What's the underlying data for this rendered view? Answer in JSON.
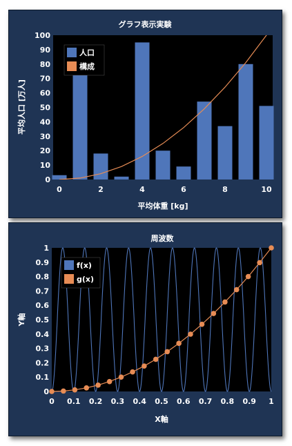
{
  "colors": {
    "bar": "#4f76ba",
    "line": "#e78c55",
    "wave": "#4f76ba",
    "panel": "#1f3454",
    "plot": "#000000"
  },
  "chart_data": [
    {
      "type": "bar",
      "title": "グラフ表示実験",
      "xlabel": "平均体重 [kg]",
      "ylabel": "平均人口 [万人]",
      "xlim": [
        -0.3,
        10.3
      ],
      "ylim": [
        0,
        100
      ],
      "xticks": [
        0,
        2,
        4,
        6,
        8,
        10
      ],
      "yticks": [
        0,
        10,
        20,
        30,
        40,
        50,
        60,
        70,
        80,
        90,
        100
      ],
      "legend": {
        "position": "top-left",
        "entries": [
          "人口",
          "構成"
        ]
      },
      "series": [
        {
          "name": "人口",
          "type": "bar",
          "x": [
            0,
            1,
            2,
            3,
            4,
            5,
            6,
            7,
            8,
            9,
            10
          ],
          "values": [
            3,
            73,
            18,
            2,
            95,
            20,
            9,
            54,
            37,
            80,
            51
          ]
        },
        {
          "name": "構成",
          "type": "line",
          "x": [
            0,
            1,
            2,
            3,
            4,
            5,
            6,
            7,
            8,
            9,
            10,
            10.3
          ],
          "values": [
            0,
            1,
            4,
            9,
            16,
            25,
            36,
            49,
            64,
            81,
            100,
            106
          ]
        }
      ]
    },
    {
      "type": "line",
      "title": "周波数",
      "xlabel": "X軸",
      "ylabel": "Y軸",
      "xlim": [
        0,
        1
      ],
      "ylim": [
        0,
        1
      ],
      "xticks": [
        "0",
        "0.1",
        "0.2",
        "0.3",
        "0.4",
        "0.5",
        "0.6",
        "0.7",
        "0.8",
        "0.9",
        "1"
      ],
      "yticks": [
        "0",
        "0.1",
        "0.2",
        "0.3",
        "0.4",
        "0.5",
        "0.6",
        "0.7",
        "0.8",
        "0.9",
        "1"
      ],
      "legend": {
        "position": "top-left",
        "entries": [
          "f(x)",
          "g(x)"
        ]
      },
      "series": [
        {
          "name": "f(x)",
          "function": "0.5 - 0.5*cos(2*pi*f*x)",
          "frequency": 10
        },
        {
          "name": "g(x)",
          "x": [
            0,
            0.053,
            0.105,
            0.158,
            0.211,
            0.263,
            0.316,
            0.368,
            0.421,
            0.474,
            0.526,
            0.579,
            0.632,
            0.684,
            0.737,
            0.789,
            0.842,
            0.895,
            0.947,
            1.0
          ],
          "values": [
            0,
            0.003,
            0.011,
            0.025,
            0.044,
            0.069,
            0.1,
            0.136,
            0.177,
            0.224,
            0.277,
            0.335,
            0.399,
            0.468,
            0.543,
            0.623,
            0.709,
            0.8,
            0.897,
            1.0
          ]
        }
      ]
    }
  ]
}
